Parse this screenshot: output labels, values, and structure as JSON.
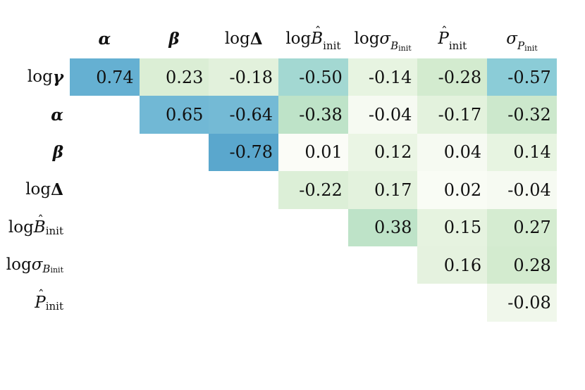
{
  "chart_data": {
    "type": "heatmap",
    "description": "Upper-triangular correlation matrix with GnBu-style shading by absolute value",
    "title": "",
    "background": "#ffffff",
    "text_color": "#111111",
    "columns": [
      {
        "text": "α",
        "segments": [
          {
            "t": "α",
            "s": "bi"
          }
        ]
      },
      {
        "text": "β",
        "segments": [
          {
            "t": "β",
            "s": "bi"
          }
        ]
      },
      {
        "text": "log Δ",
        "segments": [
          {
            "t": "log ",
            "s": "rm"
          },
          {
            "t": "Δ",
            "s": "bf"
          }
        ]
      },
      {
        "text": "log B̂init",
        "segments": [
          {
            "t": "log ",
            "s": "rm"
          },
          {
            "t": "B",
            "s": "it",
            "hat": "ˆ"
          },
          {
            "t": "init",
            "s": "sub"
          }
        ]
      },
      {
        "text": "log σBinit",
        "segments": [
          {
            "t": "log ",
            "s": "rm"
          },
          {
            "t": "σ",
            "s": "it"
          },
          {
            "t": "B",
            "s": "subit"
          },
          {
            "t": "init",
            "s": "subsub"
          }
        ]
      },
      {
        "text": "P̂init",
        "segments": [
          {
            "t": "P",
            "s": "it",
            "hat": "ˆ"
          },
          {
            "t": "init",
            "s": "sub"
          }
        ]
      },
      {
        "text": "σPinit",
        "segments": [
          {
            "t": "σ",
            "s": "it"
          },
          {
            "t": "P",
            "s": "subit"
          },
          {
            "t": "init",
            "s": "subsub"
          }
        ]
      }
    ],
    "rows": [
      {
        "text": "log γ",
        "segments": [
          {
            "t": "log ",
            "s": "rm"
          },
          {
            "t": "γ",
            "s": "bi"
          }
        ]
      },
      {
        "text": "α",
        "segments": [
          {
            "t": "α",
            "s": "bi"
          }
        ]
      },
      {
        "text": "β",
        "segments": [
          {
            "t": "β",
            "s": "bi"
          }
        ]
      },
      {
        "text": "log Δ",
        "segments": [
          {
            "t": "log ",
            "s": "rm"
          },
          {
            "t": "Δ",
            "s": "bf"
          }
        ]
      },
      {
        "text": "log B̂init",
        "segments": [
          {
            "t": "log ",
            "s": "rm"
          },
          {
            "t": "B",
            "s": "it",
            "hat": "ˆ"
          },
          {
            "t": "init",
            "s": "sub"
          }
        ]
      },
      {
        "text": "log σBinit",
        "segments": [
          {
            "t": "log ",
            "s": "rm"
          },
          {
            "t": "σ",
            "s": "it"
          },
          {
            "t": "B",
            "s": "subit"
          },
          {
            "t": "init",
            "s": "subsub"
          }
        ]
      },
      {
        "text": "P̂init",
        "segments": [
          {
            "t": "P",
            "s": "it",
            "hat": "ˆ"
          },
          {
            "t": "init",
            "s": "sub"
          }
        ]
      }
    ],
    "values": [
      [
        0.74,
        0.23,
        -0.18,
        -0.5,
        -0.14,
        -0.28,
        -0.57
      ],
      [
        null,
        0.65,
        -0.64,
        -0.38,
        -0.04,
        -0.17,
        -0.32
      ],
      [
        null,
        null,
        -0.78,
        0.01,
        0.12,
        0.04,
        0.14
      ],
      [
        null,
        null,
        null,
        -0.22,
        0.17,
        0.02,
        -0.04
      ],
      [
        null,
        null,
        null,
        null,
        0.38,
        0.15,
        0.27
      ],
      [
        null,
        null,
        null,
        null,
        null,
        0.16,
        0.28
      ],
      [
        null,
        null,
        null,
        null,
        null,
        null,
        -0.08
      ]
    ],
    "value_decimals": 2,
    "colormap": {
      "basis": "absolute value of correlation",
      "stops": [
        [
          0.0,
          "#fcfdf9"
        ],
        [
          0.1,
          "#edf6e7"
        ],
        [
          0.2,
          "#dff0d9"
        ],
        [
          0.3,
          "#d0eacd"
        ],
        [
          0.4,
          "#bae1c7"
        ],
        [
          0.5,
          "#a3d8d2"
        ],
        [
          0.58,
          "#87cad8"
        ],
        [
          0.66,
          "#6eb5d4"
        ],
        [
          0.75,
          "#64afd2"
        ],
        [
          0.85,
          "#4394c2"
        ]
      ]
    }
  }
}
